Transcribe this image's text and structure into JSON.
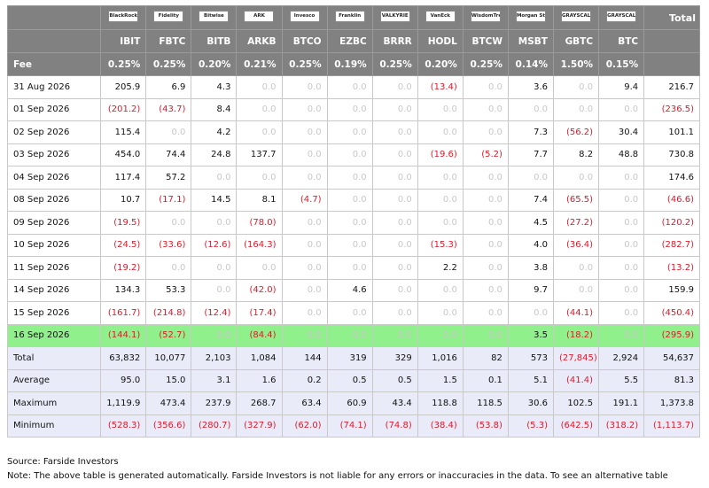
{
  "logos": [
    "BlackRock",
    "Fidelity",
    "Bitwise",
    "ARK",
    "Invesco",
    "Franklin",
    "VALKYRIE",
    "VanEck",
    "WisdomTree",
    "Morgan Stanley",
    "GRAYSCALE",
    "GRAYSCALE"
  ],
  "total_label": "Total",
  "columns": [
    "IBIT",
    "FBTC",
    "BITB",
    "ARKB",
    "BTCO",
    "EZBC",
    "BRRR",
    "HODL",
    "BTCW",
    "MSBT",
    "GBTC",
    "BTC"
  ],
  "fee_label": "Fee",
  "fees": [
    "0.25%",
    "0.25%",
    "0.20%",
    "0.21%",
    "0.25%",
    "0.19%",
    "0.25%",
    "0.20%",
    "0.25%",
    "0.14%",
    "1.50%",
    "0.15%"
  ],
  "rows": [
    {
      "date": "31 Aug 2026",
      "values": [
        "205.9",
        "6.9",
        "4.3",
        "0.0",
        "0.0",
        "0.0",
        "0.0",
        "(13.4)",
        "0.0",
        "3.6",
        "0.0",
        "9.4"
      ],
      "total": "216.7"
    },
    {
      "date": "01 Sep 2026",
      "values": [
        "(201.2)",
        "(43.7)",
        "8.4",
        "0.0",
        "0.0",
        "0.0",
        "0.0",
        "0.0",
        "0.0",
        "0.0",
        "0.0",
        "0.0"
      ],
      "total": "(236.5)"
    },
    {
      "date": "02 Sep 2026",
      "values": [
        "115.4",
        "0.0",
        "4.2",
        "0.0",
        "0.0",
        "0.0",
        "0.0",
        "0.0",
        "0.0",
        "7.3",
        "(56.2)",
        "30.4"
      ],
      "total": "101.1"
    },
    {
      "date": "03 Sep 2026",
      "values": [
        "454.0",
        "74.4",
        "24.8",
        "137.7",
        "0.0",
        "0.0",
        "0.0",
        "(19.6)",
        "(5.2)",
        "7.7",
        "8.2",
        "48.8"
      ],
      "total": "730.8"
    },
    {
      "date": "04 Sep 2026",
      "values": [
        "117.4",
        "57.2",
        "0.0",
        "0.0",
        "0.0",
        "0.0",
        "0.0",
        "0.0",
        "0.0",
        "0.0",
        "0.0",
        "0.0"
      ],
      "total": "174.6"
    },
    {
      "date": "08 Sep 2026",
      "values": [
        "10.7",
        "(17.1)",
        "14.5",
        "8.1",
        "(4.7)",
        "0.0",
        "0.0",
        "0.0",
        "0.0",
        "7.4",
        "(65.5)",
        "0.0"
      ],
      "total": "(46.6)"
    },
    {
      "date": "09 Sep 2026",
      "values": [
        "(19.5)",
        "0.0",
        "0.0",
        "(78.0)",
        "0.0",
        "0.0",
        "0.0",
        "0.0",
        "0.0",
        "4.5",
        "(27.2)",
        "0.0"
      ],
      "total": "(120.2)"
    },
    {
      "date": "10 Sep 2026",
      "values": [
        "(24.5)",
        "(33.6)",
        "(12.6)",
        "(164.3)",
        "0.0",
        "0.0",
        "0.0",
        "(15.3)",
        "0.0",
        "4.0",
        "(36.4)",
        "0.0"
      ],
      "total": "(282.7)"
    },
    {
      "date": "11 Sep 2026",
      "values": [
        "(19.2)",
        "0.0",
        "0.0",
        "0.0",
        "0.0",
        "0.0",
        "0.0",
        "2.2",
        "0.0",
        "3.8",
        "0.0",
        "0.0"
      ],
      "total": "(13.2)"
    },
    {
      "date": "14 Sep 2026",
      "values": [
        "134.3",
        "53.3",
        "0.0",
        "(42.0)",
        "0.0",
        "4.6",
        "0.0",
        "0.0",
        "0.0",
        "9.7",
        "0.0",
        "0.0"
      ],
      "total": "159.9"
    },
    {
      "date": "15 Sep 2026",
      "values": [
        "(161.7)",
        "(214.8)",
        "(12.4)",
        "(17.4)",
        "0.0",
        "0.0",
        "0.0",
        "0.0",
        "0.0",
        "0.0",
        "(44.1)",
        "0.0"
      ],
      "total": "(450.4)"
    },
    {
      "date": "16 Sep 2026",
      "values": [
        "(144.1)",
        "(52.7)",
        "0.0",
        "(84.4)",
        "0.0",
        "0.0",
        "0.0",
        "0.0",
        "0.0",
        "3.5",
        "(18.2)",
        "0.0"
      ],
      "total": "(295.9)",
      "highlight": true
    }
  ],
  "stats": [
    {
      "label": "Total",
      "values": [
        "63,832",
        "10,077",
        "2,103",
        "1,084",
        "144",
        "319",
        "329",
        "1,016",
        "82",
        "573",
        "(27,845)",
        "2,924"
      ],
      "total": "54,637"
    },
    {
      "label": "Average",
      "values": [
        "95.0",
        "15.0",
        "3.1",
        "1.6",
        "0.2",
        "0.5",
        "0.5",
        "1.5",
        "0.1",
        "5.1",
        "(41.4)",
        "5.5"
      ],
      "total": "81.3"
    },
    {
      "label": "Maximum",
      "values": [
        "1,119.9",
        "473.4",
        "237.9",
        "268.7",
        "63.4",
        "60.9",
        "43.4",
        "118.8",
        "118.5",
        "30.6",
        "102.5",
        "191.1"
      ],
      "total": "1,373.8"
    },
    {
      "label": "Minimum",
      "values": [
        "(528.3)",
        "(356.6)",
        "(280.7)",
        "(327.9)",
        "(62.0)",
        "(74.1)",
        "(74.8)",
        "(38.4)",
        "(53.8)",
        "(5.3)",
        "(642.5)",
        "(318.2)"
      ],
      "total": "(1,113.7)"
    }
  ],
  "source": "Source: Farside Investors",
  "note": "Note: The above table is generated automatically. Farside Investors is not liable for any errors or inaccuracies in the data. To see an alternative table",
  "colors": {
    "header_bg": "#818181",
    "highlight_row": "#90f08c",
    "stats_bg": "#e9ecf8",
    "negative": "#e0182a",
    "zero": "#c8c8c8"
  }
}
